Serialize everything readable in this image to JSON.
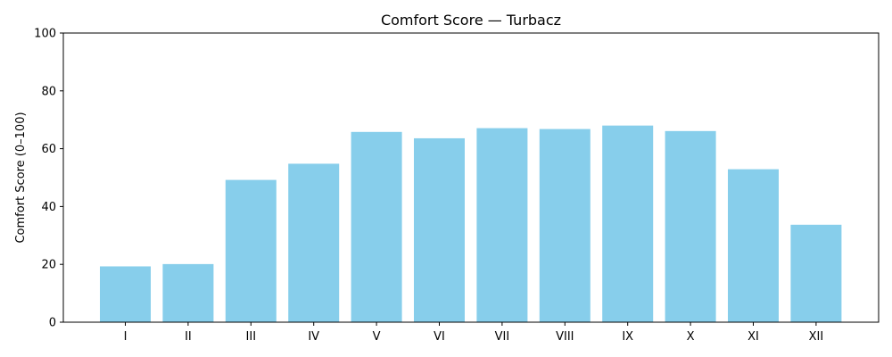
{
  "chart_data": {
    "type": "bar",
    "title": "Comfort Score — Turbacz",
    "xlabel": "",
    "ylabel": "Comfort Score (0–100)",
    "categories": [
      "I",
      "II",
      "III",
      "IV",
      "V",
      "VI",
      "VII",
      "VIII",
      "IX",
      "X",
      "XI",
      "XII"
    ],
    "values": [
      19.3,
      20.1,
      49.2,
      54.8,
      65.8,
      63.6,
      67.1,
      66.8,
      68.0,
      66.1,
      52.9,
      33.7
    ],
    "ylim": [
      0,
      100
    ],
    "yticks": [
      "0",
      "20",
      "40",
      "60",
      "80",
      "100"
    ],
    "grid": false,
    "bar_color": "#87CEEB"
  }
}
